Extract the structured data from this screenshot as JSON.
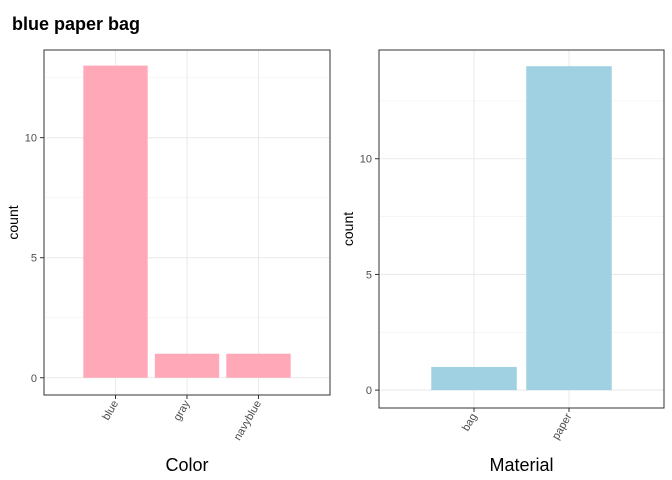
{
  "title": "blue paper bag",
  "chart_data": [
    {
      "type": "bar",
      "categories": [
        "blue",
        "gray",
        "navyblue"
      ],
      "values": [
        13,
        1,
        1
      ],
      "xlabel": "Color",
      "ylabel": "count",
      "ylim": [
        0,
        13.65
      ],
      "yticks": [
        0,
        5,
        10
      ],
      "ytick_labels": [
        "0",
        "5",
        "10"
      ],
      "bar_color": "#FFA8B8",
      "grid": true,
      "theme": "bw"
    },
    {
      "type": "bar",
      "categories": [
        "bag",
        "paper"
      ],
      "values": [
        1,
        14
      ],
      "xlabel": "Material",
      "ylabel": "count",
      "ylim": [
        0,
        14.7
      ],
      "yticks": [
        0,
        5,
        10
      ],
      "ytick_labels": [
        "0",
        "5",
        "10"
      ],
      "bar_color": "#A0D1E2",
      "grid": true,
      "theme": "bw"
    }
  ]
}
